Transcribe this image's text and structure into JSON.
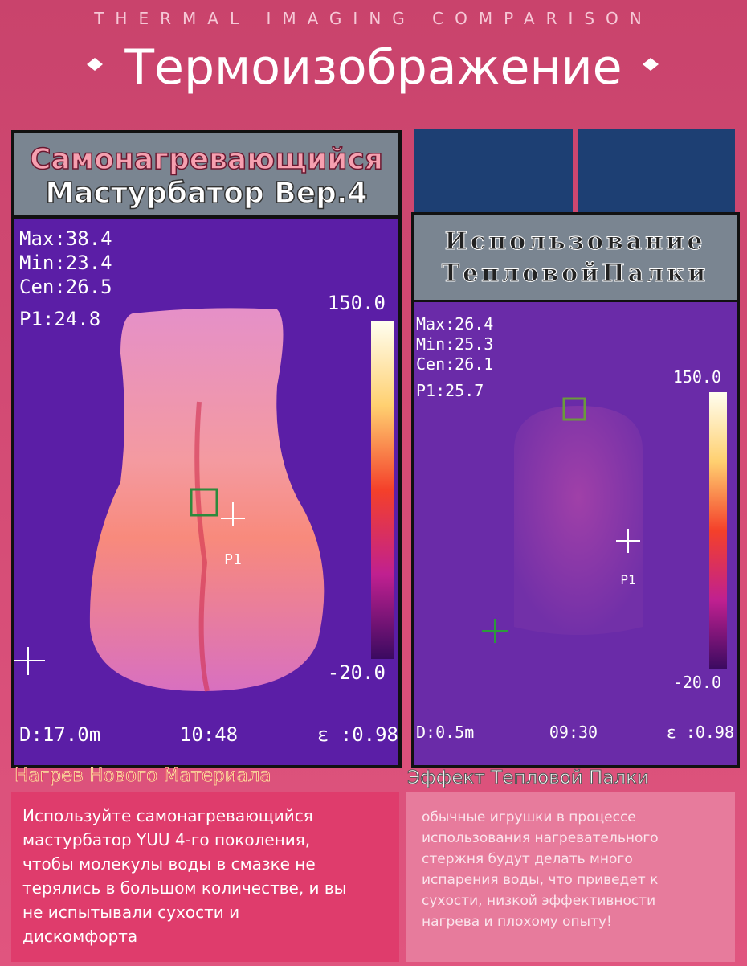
{
  "header": {
    "subtitle": "THERMAL IMAGING COMPARISON",
    "title": "Термоизображение"
  },
  "left": {
    "title_lines": [
      "Самонагревающийся",
      "Мастурбатор Вер.4"
    ],
    "readings": [
      "Max:38.4",
      "Min:23.4",
      "Cen:26.5",
      "P1:24.8"
    ],
    "scale_max": "150.0",
    "scale_min": "-20.0",
    "point": "P1",
    "footer": [
      "D:17.0m",
      "10:48",
      "ε :0.98"
    ],
    "caption": "Нагрев Нового Материала",
    "description": [
      "Используйте самонагревающийся",
      "мастурбатор YUU 4-го поколения,",
      "чтобы молекулы воды в смазке не",
      "терялись в большом количестве, и вы",
      "не испытывали сухости и",
      "дискомфорта"
    ]
  },
  "right": {
    "title_lines": [
      "Использование",
      "ТепловойПалки"
    ],
    "readings": [
      "Max:26.4",
      "Min:25.3",
      "Cen:26.1",
      "P1:25.7"
    ],
    "scale_max": "150.0",
    "scale_min": "-20.0",
    "point": "P1",
    "footer": [
      "D:0.5m",
      "09:30",
      "ε :0.98"
    ],
    "caption": "Эффект Тепловой Палки",
    "description": [
      "обычные игрушки в процессе",
      "использования нагревательного",
      "стержня будут делать много",
      "испарения воды, что приведет к",
      "сухости, низкой эффективности",
      "нагрева и плохому опыту!"
    ]
  }
}
